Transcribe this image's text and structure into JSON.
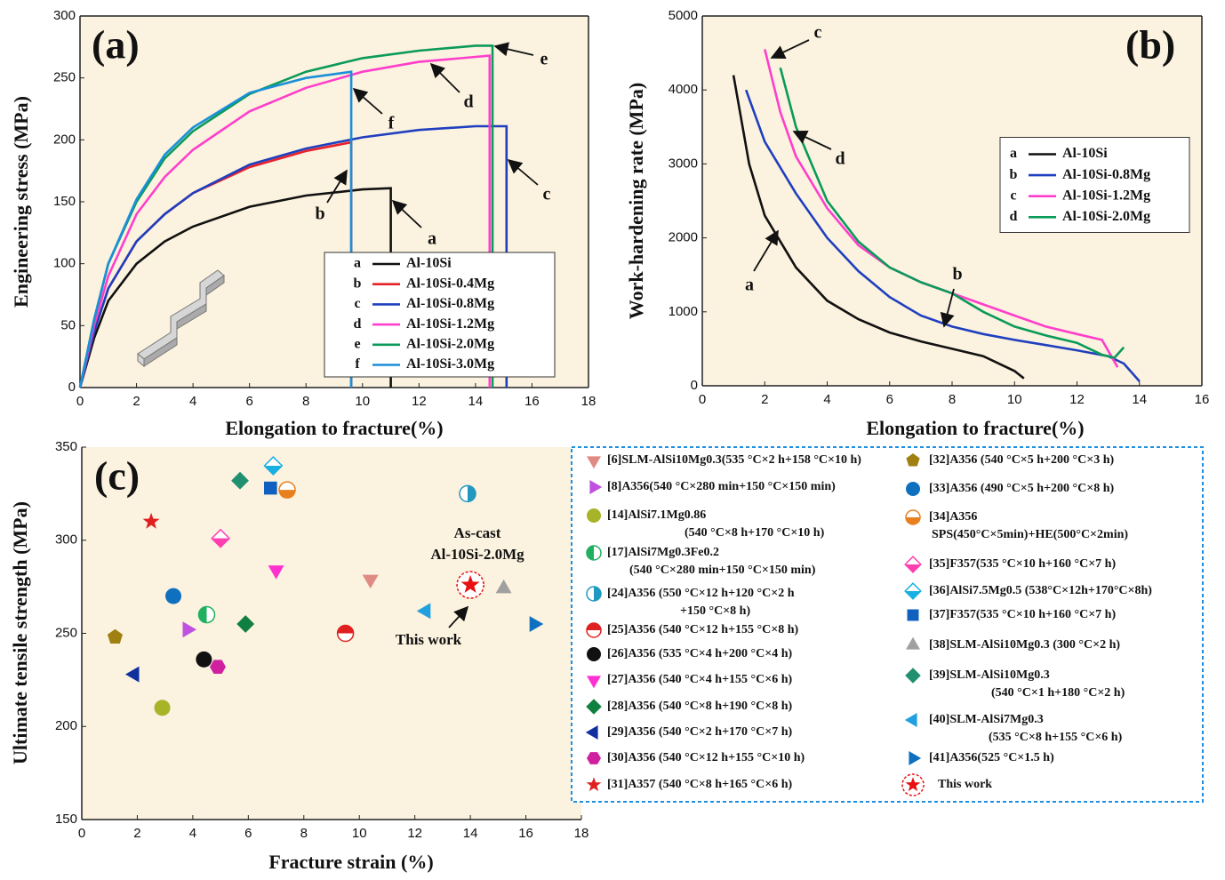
{
  "chart_data": [
    {
      "type": "line",
      "title": "(a)",
      "xlabel": "Elongation to fracture(%)",
      "ylabel": "Engineering stress (MPa)",
      "xlim": [
        0,
        18
      ],
      "ylim": [
        0,
        300
      ],
      "xticks": [
        0,
        2,
        4,
        6,
        8,
        10,
        12,
        14,
        16,
        18
      ],
      "yticks": [
        0,
        50,
        100,
        150,
        200,
        250,
        300
      ],
      "legend": "lower right",
      "series": [
        {
          "label": "a",
          "name": "Al-10Si",
          "color": "#111111",
          "x": [
            0,
            0.5,
            1,
            2,
            3,
            4,
            6,
            8,
            10,
            11,
            11
          ],
          "values": [
            0,
            40,
            70,
            100,
            118,
            130,
            146,
            155,
            160,
            161,
            0
          ]
        },
        {
          "label": "b",
          "name": "Al-10Si-0.4Mg",
          "color": "#e8202a",
          "x": [
            0,
            0.5,
            1,
            2,
            3,
            4,
            6,
            8,
            9.6,
            9.6
          ],
          "values": [
            0,
            45,
            80,
            118,
            140,
            157,
            178,
            191,
            198,
            0
          ]
        },
        {
          "label": "c",
          "name": "Al-10Si-0.8Mg",
          "color": "#1f3fbf",
          "x": [
            0,
            0.5,
            1,
            2,
            3,
            4,
            6,
            8,
            10,
            12,
            14,
            15.1,
            15.1
          ],
          "values": [
            0,
            45,
            80,
            118,
            140,
            157,
            180,
            193,
            202,
            208,
            211,
            211,
            0
          ]
        },
        {
          "label": "d",
          "name": "Al-10Si-1.2Mg",
          "color": "#ff3ecb",
          "x": [
            0,
            0.5,
            1,
            2,
            3,
            4,
            6,
            8,
            10,
            12,
            14,
            14.5,
            14.5
          ],
          "values": [
            0,
            50,
            90,
            140,
            170,
            192,
            223,
            242,
            255,
            263,
            267,
            268,
            0
          ]
        },
        {
          "label": "e",
          "name": "Al-10Si-2.0Mg",
          "color": "#0a9a5a",
          "x": [
            0,
            0.5,
            1,
            2,
            3,
            4,
            6,
            8,
            10,
            12,
            14,
            14.6,
            14.6
          ],
          "values": [
            0,
            55,
            100,
            150,
            185,
            207,
            237,
            255,
            266,
            272,
            276,
            276,
            0
          ]
        },
        {
          "label": "f",
          "name": "Al-10Si-3.0Mg",
          "color": "#1a8fd8",
          "x": [
            0,
            0.5,
            1,
            2,
            3,
            4,
            6,
            8,
            9.6,
            9.6
          ],
          "values": [
            0,
            55,
            100,
            152,
            188,
            210,
            238,
            250,
            255,
            0
          ]
        }
      ]
    },
    {
      "type": "line",
      "title": "(b)",
      "xlabel": "Elongation to fracture(%)",
      "ylabel": "Work-hardening rate (MPa)",
      "xlim": [
        0,
        16
      ],
      "ylim": [
        0,
        5000
      ],
      "xticks": [
        0,
        2,
        4,
        6,
        8,
        10,
        12,
        14,
        16
      ],
      "yticks": [
        0,
        1000,
        2000,
        3000,
        4000,
        5000
      ],
      "legend": "center right",
      "series": [
        {
          "label": "a",
          "name": "Al-10Si",
          "color": "#111111",
          "x": [
            1,
            1.5,
            2,
            3,
            4,
            5,
            6,
            7,
            8,
            9,
            10,
            10.3
          ],
          "values": [
            4200,
            3000,
            2300,
            1600,
            1150,
            900,
            720,
            600,
            500,
            400,
            200,
            100
          ]
        },
        {
          "label": "b",
          "name": "Al-10Si-0.8Mg",
          "color": "#1f3fbf",
          "x": [
            1.4,
            2,
            3,
            4,
            5,
            6,
            7,
            8,
            9,
            10,
            11,
            12,
            13,
            13.5,
            14
          ],
          "values": [
            4000,
            3300,
            2600,
            2000,
            1550,
            1200,
            950,
            800,
            700,
            620,
            550,
            480,
            400,
            300,
            60
          ]
        },
        {
          "label": "c",
          "name": "Al-10Si-1.2Mg",
          "color": "#ff3ecb",
          "x": [
            2,
            2.5,
            3,
            4,
            5,
            6,
            7,
            8,
            9,
            10,
            11,
            12,
            12.8,
            13.3
          ],
          "values": [
            4550,
            3700,
            3100,
            2400,
            1900,
            1600,
            1400,
            1250,
            1100,
            950,
            800,
            700,
            620,
            250
          ]
        },
        {
          "label": "d",
          "name": "Al-10Si-2.0Mg",
          "color": "#0a9a5a",
          "x": [
            2.5,
            3,
            4,
            5,
            6,
            7,
            8,
            9,
            10,
            11,
            12,
            12.8,
            13.2,
            13.5
          ],
          "values": [
            4300,
            3500,
            2500,
            1950,
            1600,
            1400,
            1250,
            1000,
            800,
            680,
            580,
            420,
            380,
            520
          ]
        }
      ]
    },
    {
      "type": "scatter",
      "title": "(c)",
      "xlabel": "Fracture strain (%)",
      "ylabel": "Ultimate tensile strength (MPa)",
      "xlim": [
        0,
        18
      ],
      "ylim": [
        150,
        350
      ],
      "xticks": [
        0,
        2,
        4,
        6,
        8,
        10,
        12,
        14,
        16,
        18
      ],
      "yticks": [
        150,
        200,
        250,
        300,
        350
      ],
      "legend": "right",
      "annotations": [
        "As-cast",
        "Al-10Si-2.0Mg",
        "This work"
      ],
      "series": [
        {
          "name": [
            "[6]SLM-AlSi10Mg0.3(535 °C×2 h+158 °C×10 h)"
          ],
          "color": "#e08a84",
          "marker": "triangle-down",
          "x": [
            10.4
          ],
          "values": [
            279
          ]
        },
        {
          "name": [
            "[8]A356(540 °C×280 min+150 °C×150 min)"
          ],
          "color": "#c050e0",
          "marker": "triangle-right",
          "x": [
            3.8
          ],
          "values": [
            252
          ]
        },
        {
          "name": [
            "[14]AlSi7.1Mg0.86",
            "(540 °C×8 h+170 °C×10 h)"
          ],
          "color": "#a8b428",
          "marker": "circle",
          "x": [
            2.9
          ],
          "values": [
            210
          ]
        },
        {
          "name": [
            "[17]AlSi7Mg0.3Fe0.2",
            "(540 °C×280 min+150 °C×150 min)"
          ],
          "color": "#20b060",
          "marker": "half-left",
          "x": [
            4.5
          ],
          "values": [
            260
          ]
        },
        {
          "name": [
            "[24]A356 (550 °C×12 h+120 °C×2 h",
            "+150 °C×8 h)"
          ],
          "color": "#2098c0",
          "marker": "half-right",
          "x": [
            13.9
          ],
          "values": [
            325
          ]
        },
        {
          "name": [
            "[25]A356 (540 °C×12 h+155 °C×8 h)"
          ],
          "color": "#e02020",
          "marker": "half-top",
          "x": [
            9.5
          ],
          "values": [
            250
          ]
        },
        {
          "name": [
            "[26]A356 (535 °C×4 h+200 °C×4 h)"
          ],
          "color": "#111111",
          "marker": "circle",
          "x": [
            4.4
          ],
          "values": [
            236
          ]
        },
        {
          "name": [
            "[27]A356 (540 °C×4 h+155 °C×6 h)"
          ],
          "color": "#ff30d0",
          "marker": "triangle-down",
          "x": [
            7.0
          ],
          "values": [
            284
          ]
        },
        {
          "name": [
            "[28]A356 (540 °C×8 h+190 °C×8 h)"
          ],
          "color": "#108040",
          "marker": "diamond",
          "x": [
            5.9
          ],
          "values": [
            255
          ]
        },
        {
          "name": [
            "[29]A356 (540 °C×2 h+170 °C×7 h)"
          ],
          "color": "#1030a0",
          "marker": "triangle-left",
          "x": [
            1.9
          ],
          "values": [
            228
          ]
        },
        {
          "name": [
            "[30]A356 (540 °C×12 h+155 °C×10 h)"
          ],
          "color": "#d020a0",
          "marker": "hexagon",
          "x": [
            4.9
          ],
          "values": [
            232
          ]
        },
        {
          "name": [
            "[31]A357 (540 °C×8 h+165 °C×6 h)"
          ],
          "color": "#e02020",
          "marker": "star",
          "x": [
            2.5
          ],
          "values": [
            310
          ]
        },
        {
          "name": [
            "[32]A356 (540 °C×5 h+200 °C×3 h)"
          ],
          "color": "#a08010",
          "marker": "pentagon",
          "x": [
            1.2
          ],
          "values": [
            248
          ]
        },
        {
          "name": [
            "[33]A356 (490 °C×5 h+200 °C×8 h)"
          ],
          "color": "#1070c0",
          "marker": "circle",
          "x": [
            3.3
          ],
          "values": [
            270
          ]
        },
        {
          "name": [
            "[34]A356",
            "SPS(450°C×5min)+HE(500°C×2min)"
          ],
          "color": "#e88020",
          "marker": "half-bottom",
          "x": [
            7.4
          ],
          "values": [
            327
          ]
        },
        {
          "name": [
            "[35]F357(535 °C×10 h+160 °C×7 h)"
          ],
          "color": "#ff3eb0",
          "marker": "half-diamond",
          "x": [
            5.0
          ],
          "values": [
            301
          ]
        },
        {
          "name": [
            "[36]AlSi7.5Mg0.5 (538°C×12h+170°C×8h)"
          ],
          "color": "#18b0e0",
          "marker": "half-diamond",
          "x": [
            6.9
          ],
          "values": [
            340
          ]
        },
        {
          "name": [
            "[37]F357(535 °C×10 h+160 °C×7 h)"
          ],
          "color": "#1060c0",
          "marker": "square",
          "x": [
            6.8
          ],
          "values": [
            328
          ]
        },
        {
          "name": [
            "[38]SLM-AlSi10Mg0.3 (300 °C×2 h)"
          ],
          "color": "#a0a0a0",
          "marker": "triangle-up",
          "x": [
            15.2
          ],
          "values": [
            274
          ]
        },
        {
          "name": [
            "[39]SLM-AlSi10Mg0.3",
            "(540 °C×1 h+180 °C×2 h)"
          ],
          "color": "#209070",
          "marker": "diamond",
          "x": [
            5.7
          ],
          "values": [
            332
          ]
        },
        {
          "name": [
            "[40]SLM-AlSi7Mg0.3",
            "(535 °C×8 h+155 °C×6 h)"
          ],
          "color": "#20a0e0",
          "marker": "triangle-left",
          "x": [
            12.4
          ],
          "values": [
            262
          ]
        },
        {
          "name": [
            "[41]A356(525 °C×1.5 h)"
          ],
          "color": "#1070c0",
          "marker": "triangle-right",
          "x": [
            16.3
          ],
          "values": [
            255
          ]
        },
        {
          "name": [
            "This work"
          ],
          "color": "#e81010",
          "marker": "star-circle",
          "x": [
            14.0
          ],
          "values": [
            276
          ]
        }
      ]
    }
  ]
}
